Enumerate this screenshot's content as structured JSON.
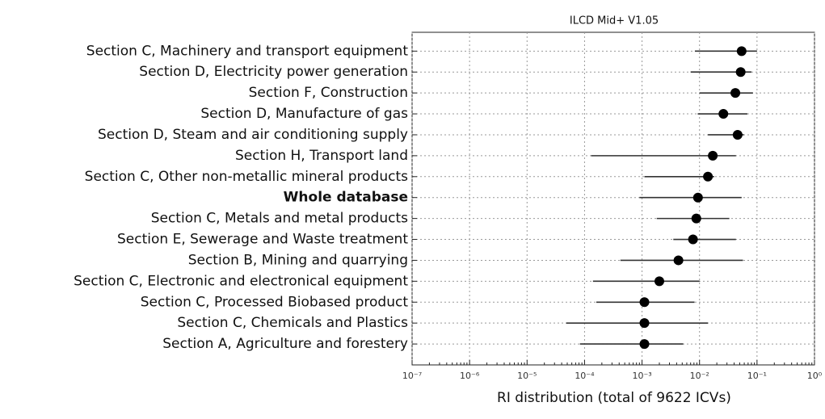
{
  "chart_data": {
    "type": "dot-errorbar",
    "title": "ILCD Mid+ V1.05",
    "xlabel": "RI distribution (total of 9622 ICVs)",
    "categories": [
      "Section C, Machinery and transport equipment",
      "Section D, Electricity power generation",
      "Section F, Construction",
      "Section D, Manufacture of gas",
      "Section D, Steam and air conditioning supply",
      "Section H, Transport land",
      "Section C, Other non-metallic mineral products",
      "Whole database",
      "Section C, Metals and metal products",
      "Section E, Sewerage and Waste treatment",
      "Section B, Mining and quarrying",
      "Section C, Electronic and electronical equipment",
      "Section C, Processed Biobased product",
      "Section C, Chemicals and Plastics",
      "Section A, Agriculture and forestery"
    ],
    "values": [
      0.054,
      0.052,
      0.042,
      0.026,
      0.046,
      0.017,
      0.014,
      0.0094,
      0.0088,
      0.0077,
      0.0043,
      0.002,
      0.0011,
      0.0011,
      0.0011
    ],
    "lower": [
      0.0083,
      0.007,
      0.01,
      0.0093,
      0.014,
      0.00013,
      0.0011,
      0.0009,
      0.0018,
      0.0035,
      0.00042,
      0.00014,
      0.00016,
      4.8e-05,
      8.3e-05
    ],
    "upper": [
      0.1,
      0.08,
      0.085,
      0.068,
      0.059,
      0.043,
      0.018,
      0.054,
      0.033,
      0.043,
      0.057,
      0.01,
      0.0082,
      0.014,
      0.0052
    ],
    "emphasized": [
      7
    ],
    "color": "#000000",
    "xscale": "log",
    "xlim": [
      1e-07,
      1
    ],
    "xticks": [
      {
        "value": 1e-07,
        "label": "10⁻⁷"
      },
      {
        "value": 1e-06,
        "label": "10⁻⁶"
      },
      {
        "value": 1e-05,
        "label": "10⁻⁵"
      },
      {
        "value": 0.0001,
        "label": "10⁻⁴"
      },
      {
        "value": 0.001,
        "label": "10⁻³"
      },
      {
        "value": 0.01,
        "label": "10⁻²"
      },
      {
        "value": 0.1,
        "label": "10⁻¹"
      },
      {
        "value": 1,
        "label": "10⁰"
      }
    ],
    "grid": true
  }
}
